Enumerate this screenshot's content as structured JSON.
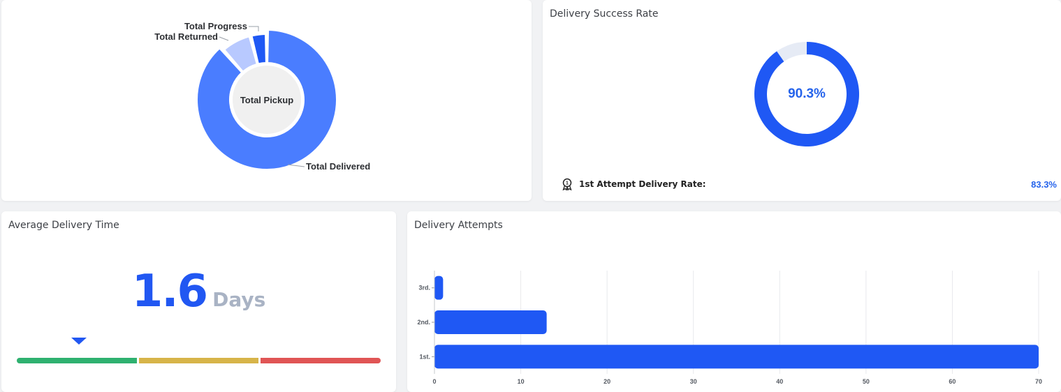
{
  "pickup_card": {
    "center_label": "Total Pickup",
    "slices": [
      {
        "label": "Total Delivered",
        "value": 88.5,
        "color": "#4a7dff"
      },
      {
        "label": "Total Returned",
        "value": 7.5,
        "color": "#b8c9ff"
      },
      {
        "label": "Total Progress",
        "value": 4.0,
        "color": "#1f58f4"
      }
    ],
    "center_color": "#f0f0f0"
  },
  "success_card": {
    "title": "Delivery Success Rate",
    "rate_label": "90.3%",
    "rate_value": 90.3,
    "ring_color": "#1f58f4",
    "ring_bg": "#e6ebf5",
    "first_attempt_label": "1st Attempt Delivery Rate:",
    "first_attempt_value": "83.3%",
    "medal_icon": "medal-icon"
  },
  "avg_card": {
    "title": "Average Delivery Time",
    "value": "1.6",
    "unit": "Days",
    "scale_level": 0.17,
    "scale_colors": [
      "#2fb170",
      "#d7b449",
      "#e05555"
    ]
  },
  "chart_data": {
    "type": "bar",
    "orientation": "horizontal",
    "title": "Delivery Attempts",
    "categories": [
      "3rd.",
      "2nd.",
      "1st."
    ],
    "values": [
      1,
      13,
      70
    ],
    "xlim": [
      0,
      70
    ],
    "xticks": [
      0,
      10,
      20,
      30,
      40,
      50,
      60,
      70
    ],
    "grid": true,
    "bar_color": "#1f58f4"
  }
}
